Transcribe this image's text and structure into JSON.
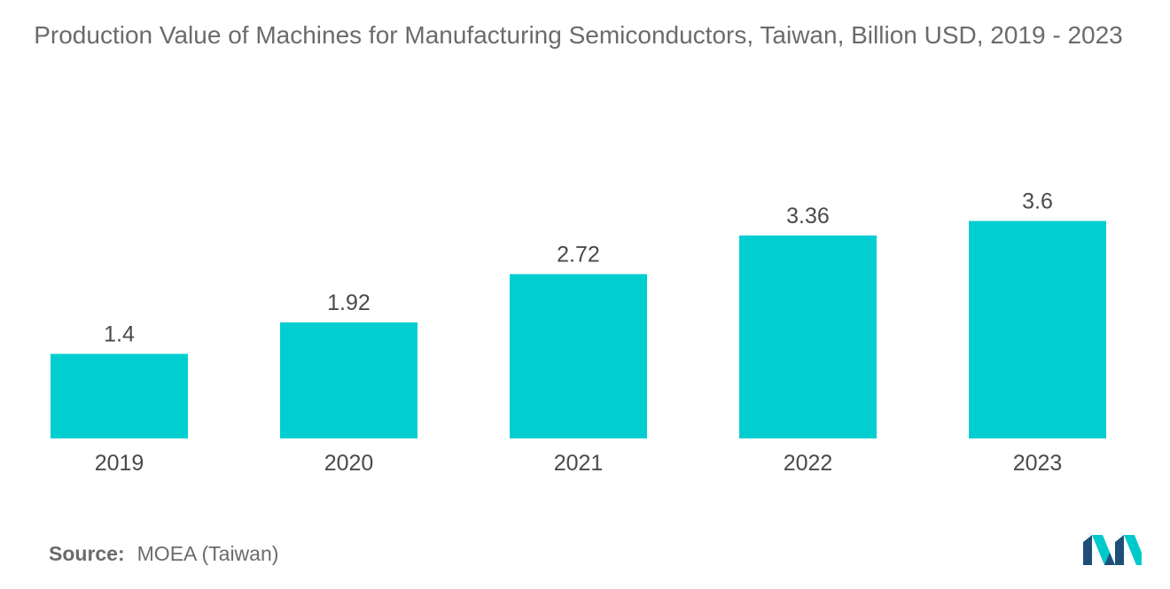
{
  "title": "Production Value of Machines for Manufacturing Semiconductors, Taiwan, Billion USD, 2019 - 2023",
  "source": {
    "label": "Source:",
    "text": "MOEA (Taiwan)"
  },
  "logo": {
    "icon": "mordor-intelligence-logo",
    "colors": [
      "#1f4e79",
      "#00c9c9"
    ]
  },
  "chart_data": {
    "type": "bar",
    "categories": [
      "2019",
      "2020",
      "2021",
      "2022",
      "2023"
    ],
    "values": [
      1.4,
      1.92,
      2.72,
      3.36,
      3.6
    ],
    "value_labels": [
      "1.4",
      "1.92",
      "2.72",
      "3.36",
      "3.6"
    ],
    "title": "Production Value of Machines for Manufacturing Semiconductors, Taiwan, Billion USD, 2019 - 2023",
    "xlabel": "",
    "ylabel": "",
    "grid": false,
    "legend": "none",
    "bar_color": "#00ced1"
  }
}
